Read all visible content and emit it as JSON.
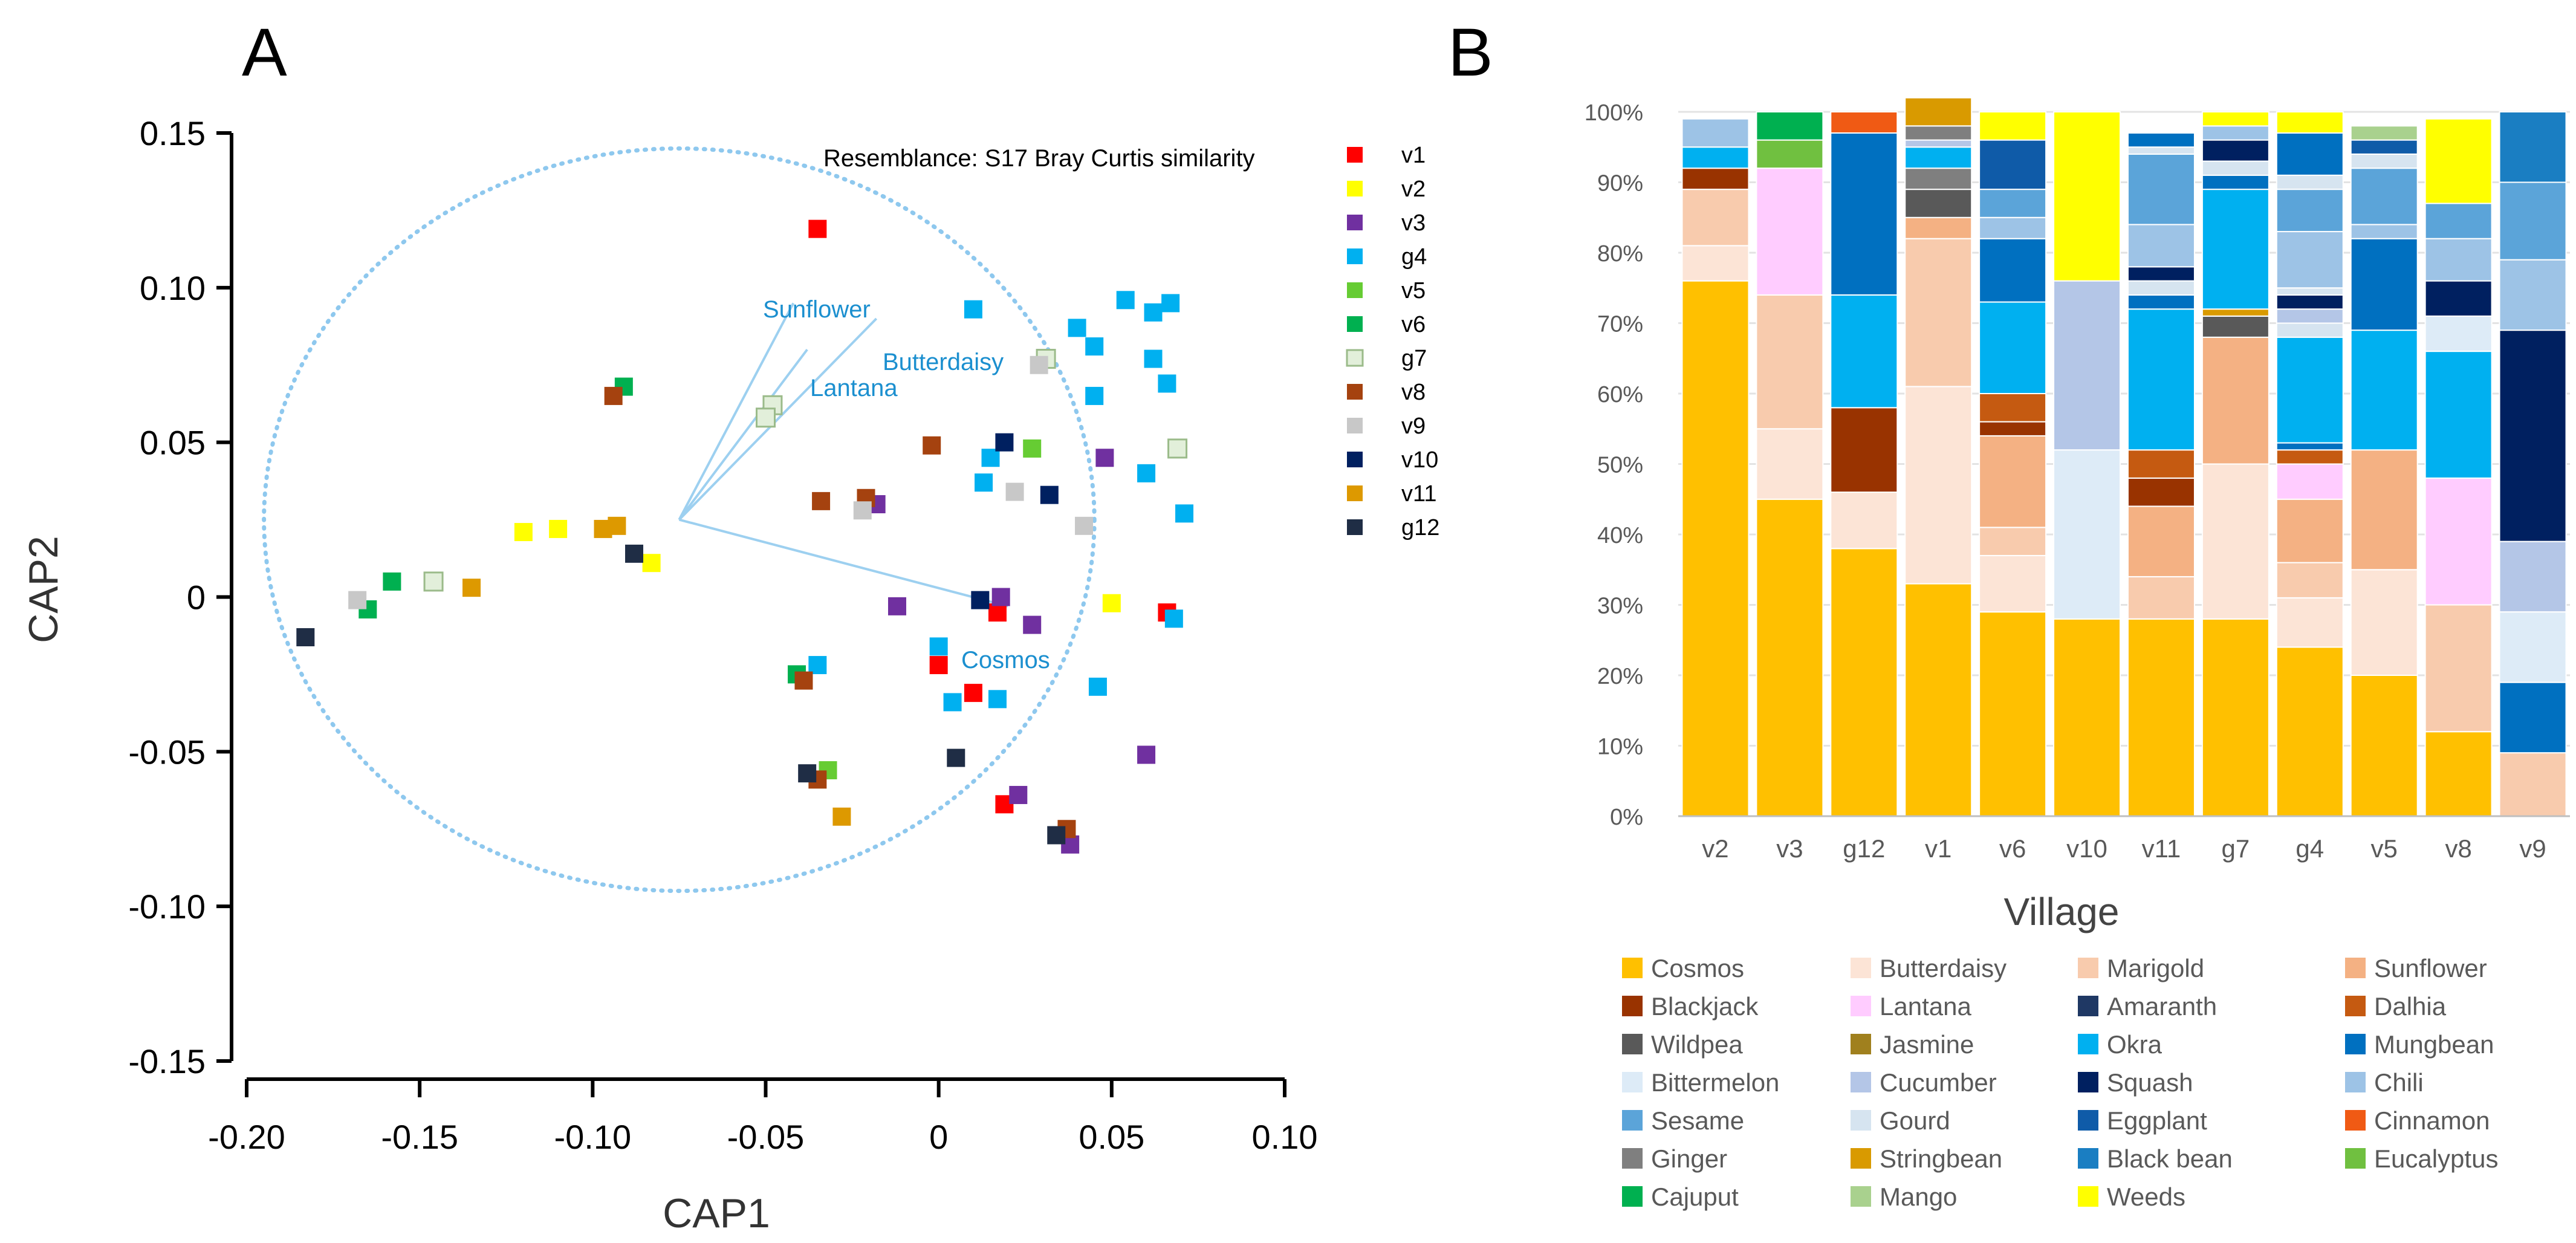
{
  "chart_data": [
    {
      "type": "scatter",
      "panel_label": "A",
      "title": "",
      "xlabel": "CAP1",
      "ylabel": "CAP2",
      "xlim": [
        -0.2,
        0.1
      ],
      "ylim": [
        -0.15,
        0.15
      ],
      "x_ticks": [
        -0.2,
        -0.15,
        -0.1,
        -0.05,
        0,
        0.05,
        0.1
      ],
      "x_tick_labels": [
        "-0.20",
        "-0.15",
        "-0.10",
        "-0.05",
        "0",
        "0.05",
        "0.10"
      ],
      "y_ticks": [
        0.15,
        0.1,
        0.05,
        0,
        -0.05,
        -0.1,
        -0.15
      ],
      "y_tick_labels": [
        "0.15",
        "0.10",
        "0.05",
        "0",
        "-0.05",
        "-0.10",
        "-0.15"
      ],
      "annotation": "Resemblance: S17 Bray Curtis similarity",
      "circle": {
        "center": [
          -0.075,
          0.025
        ],
        "radius": 0.12
      },
      "vectors": [
        {
          "label": "Sunflower",
          "end": [
            -0.042,
            0.095
          ]
        },
        {
          "label": "Butterdaisy",
          "end": [
            -0.018,
            0.09
          ]
        },
        {
          "label": "Lantana",
          "end": [
            -0.038,
            0.08
          ]
        },
        {
          "label": "Cosmos",
          "end": [
            0.02,
            -0.003
          ]
        }
      ],
      "series": [
        {
          "name": "v1",
          "color": "#ff0000",
          "points": [
            [
              -0.035,
              0.119
            ],
            [
              0.017,
              -0.005
            ],
            [
              0.066,
              -0.005
            ],
            [
              0.0,
              -0.022
            ],
            [
              0.01,
              -0.031
            ],
            [
              0.019,
              -0.067
            ]
          ]
        },
        {
          "name": "v2",
          "color": "#ffff00",
          "points": [
            [
              -0.12,
              0.021
            ],
            [
              -0.11,
              0.022
            ],
            [
              -0.083,
              0.011
            ],
            [
              0.05,
              -0.002
            ]
          ]
        },
        {
          "name": "v3",
          "color": "#7030a0",
          "points": [
            [
              -0.018,
              0.03
            ],
            [
              0.048,
              0.045
            ],
            [
              -0.012,
              -0.003
            ],
            [
              0.018,
              0.0
            ],
            [
              0.027,
              -0.009
            ],
            [
              0.06,
              -0.051
            ],
            [
              0.023,
              -0.064
            ],
            [
              0.038,
              -0.08
            ]
          ]
        },
        {
          "name": "g4",
          "color": "#00b0f0",
          "points": [
            [
              0.01,
              0.093
            ],
            [
              0.054,
              0.096
            ],
            [
              0.067,
              0.095
            ],
            [
              0.062,
              0.092
            ],
            [
              0.04,
              0.087
            ],
            [
              0.045,
              0.081
            ],
            [
              0.062,
              0.077
            ],
            [
              0.066,
              0.069
            ],
            [
              0.045,
              0.065
            ],
            [
              0.015,
              0.045
            ],
            [
              0.06,
              0.04
            ],
            [
              0.013,
              0.037
            ],
            [
              0.071,
              0.027
            ],
            [
              0.068,
              -0.007
            ],
            [
              0.0,
              -0.016
            ],
            [
              -0.035,
              -0.022
            ],
            [
              0.046,
              -0.029
            ],
            [
              0.017,
              -0.033
            ],
            [
              0.004,
              -0.034
            ]
          ]
        },
        {
          "name": "v5",
          "color": "#66cc33",
          "points": [
            [
              0.027,
              0.048
            ],
            [
              -0.032,
              -0.056
            ]
          ]
        },
        {
          "name": "v6",
          "color": "#00b050",
          "points": [
            [
              -0.091,
              0.068
            ],
            [
              -0.158,
              0.005
            ],
            [
              -0.165,
              -0.004
            ],
            [
              -0.041,
              -0.025
            ]
          ]
        },
        {
          "name": "g7",
          "color": "#e2efda",
          "points": [
            [
              -0.048,
              0.062
            ],
            [
              -0.05,
              0.058
            ],
            [
              0.031,
              0.077
            ],
            [
              0.069,
              0.048
            ],
            [
              -0.146,
              0.005
            ]
          ]
        },
        {
          "name": "v8",
          "color": "#a5420f",
          "points": [
            [
              -0.094,
              0.065
            ],
            [
              -0.002,
              0.049
            ],
            [
              -0.034,
              0.031
            ],
            [
              -0.021,
              0.032
            ],
            [
              -0.039,
              -0.027
            ],
            [
              -0.035,
              -0.059
            ],
            [
              0.037,
              -0.075
            ]
          ]
        },
        {
          "name": "v9",
          "color": "#c8c8c8",
          "points": [
            [
              0.029,
              0.075
            ],
            [
              0.022,
              0.034
            ],
            [
              -0.022,
              0.028
            ],
            [
              0.042,
              0.023
            ],
            [
              -0.168,
              -0.001
            ]
          ]
        },
        {
          "name": "v10",
          "color": "#002060",
          "points": [
            [
              0.019,
              0.05
            ],
            [
              0.032,
              0.033
            ],
            [
              0.012,
              -0.001
            ]
          ]
        },
        {
          "name": "v11",
          "color": "#dd9900",
          "points": [
            [
              -0.097,
              0.022
            ],
            [
              -0.093,
              0.023
            ],
            [
              -0.135,
              0.003
            ],
            [
              -0.028,
              -0.071
            ]
          ]
        },
        {
          "name": "g12",
          "color": "#1f2d45",
          "points": [
            [
              -0.088,
              0.014
            ],
            [
              -0.038,
              -0.057
            ],
            [
              0.005,
              -0.052
            ],
            [
              0.034,
              -0.077
            ],
            [
              -0.183,
              -0.013
            ]
          ]
        }
      ]
    },
    {
      "type": "bar",
      "stacked": true,
      "panel_label": "B",
      "title": "",
      "xlabel": "Village",
      "ylabel": "",
      "ylim": [
        0,
        100
      ],
      "y_ticks": [
        0,
        10,
        20,
        30,
        40,
        50,
        60,
        70,
        80,
        90,
        100
      ],
      "y_tick_labels": [
        "0%",
        "10%",
        "20%",
        "30%",
        "40%",
        "50%",
        "60%",
        "70%",
        "80%",
        "90%",
        "100%"
      ],
      "categories": [
        "v2",
        "v3",
        "g12",
        "v1",
        "v6",
        "v10",
        "v11",
        "g7",
        "g4",
        "v5",
        "v8",
        "v9"
      ],
      "species": [
        {
          "name": "Cosmos",
          "color": "#ffc000"
        },
        {
          "name": "Butterdaisy",
          "color": "#fce4d6"
        },
        {
          "name": "Marigold",
          "color": "#f8cbad"
        },
        {
          "name": "Sunflower",
          "color": "#f4b183"
        },
        {
          "name": "Blackjack",
          "color": "#993300"
        },
        {
          "name": "Lantana",
          "color": "#ffccff"
        },
        {
          "name": "Amaranth",
          "color": "#1f3864"
        },
        {
          "name": "Dalhia",
          "color": "#c55a11"
        },
        {
          "name": "Wildpea",
          "color": "#595959"
        },
        {
          "name": "Jasmine",
          "color": "#a0801e"
        },
        {
          "name": "Okra",
          "color": "#00b0f0"
        },
        {
          "name": "Mungbean",
          "color": "#0070c0"
        },
        {
          "name": "Bittermelon",
          "color": "#ddebf7"
        },
        {
          "name": "Cucumber",
          "color": "#b4c6e7"
        },
        {
          "name": "Squash",
          "color": "#002060"
        },
        {
          "name": "Chili",
          "color": "#9dc3e6"
        },
        {
          "name": "Sesame",
          "color": "#5ba4d9"
        },
        {
          "name": "Gourd",
          "color": "#d6e4f0"
        },
        {
          "name": "Eggplant",
          "color": "#0f5ba8"
        },
        {
          "name": "Cinnamon",
          "color": "#f05a14"
        },
        {
          "name": "Ginger",
          "color": "#7f7f7f"
        },
        {
          "name": "Stringbean",
          "color": "#d99a00"
        },
        {
          "name": "Black bean",
          "color": "#1a7ec2"
        },
        {
          "name": "Eucalyptus",
          "color": "#70c040"
        },
        {
          "name": "Cajuput",
          "color": "#00b050"
        },
        {
          "name": "Mango",
          "color": "#a9d18e"
        },
        {
          "name": "Weeds",
          "color": "#ffff00"
        }
      ],
      "stacks": [
        [
          {
            "s": "Cosmos",
            "v": 76
          },
          {
            "s": "Butterdaisy",
            "v": 5
          },
          {
            "s": "Marigold",
            "v": 8
          },
          {
            "s": "Blackjack",
            "v": 3
          },
          {
            "s": "Okra",
            "v": 3
          },
          {
            "s": "Chili",
            "v": 4
          }
        ],
        [
          {
            "s": "Cosmos",
            "v": 45
          },
          {
            "s": "Butterdaisy",
            "v": 10
          },
          {
            "s": "Marigold",
            "v": 19
          },
          {
            "s": "Lantana",
            "v": 18
          },
          {
            "s": "Eucalyptus",
            "v": 4
          },
          {
            "s": "Cajuput",
            "v": 4
          }
        ],
        [
          {
            "s": "Cosmos",
            "v": 38
          },
          {
            "s": "Butterdaisy",
            "v": 8
          },
          {
            "s": "Blackjack",
            "v": 12
          },
          {
            "s": "Okra",
            "v": 16
          },
          {
            "s": "Mungbean",
            "v": 23
          },
          {
            "s": "Cinnamon",
            "v": 3
          }
        ],
        [
          {
            "s": "Cosmos",
            "v": 33
          },
          {
            "s": "Butterdaisy",
            "v": 28
          },
          {
            "s": "Marigold",
            "v": 21
          },
          {
            "s": "Sunflower",
            "v": 3
          },
          {
            "s": "Wildpea",
            "v": 4
          },
          {
            "s": "Ginger",
            "v": 3
          },
          {
            "s": "Okra",
            "v": 3
          },
          {
            "s": "Cucumber",
            "v": 1
          },
          {
            "s": "Ginger",
            "v": 2
          },
          {
            "s": "Stringbean",
            "v": 4
          }
        ],
        [
          {
            "s": "Cosmos",
            "v": 29
          },
          {
            "s": "Butterdaisy",
            "v": 8
          },
          {
            "s": "Marigold",
            "v": 4
          },
          {
            "s": "Sunflower",
            "v": 13
          },
          {
            "s": "Blackjack",
            "v": 2
          },
          {
            "s": "Dalhia",
            "v": 4
          },
          {
            "s": "Okra",
            "v": 13
          },
          {
            "s": "Mungbean",
            "v": 9
          },
          {
            "s": "Chili",
            "v": 3
          },
          {
            "s": "Sesame",
            "v": 4
          },
          {
            "s": "Eggplant",
            "v": 7
          },
          {
            "s": "Weeds",
            "v": 4
          }
        ],
        [
          {
            "s": "Cosmos",
            "v": 28
          },
          {
            "s": "Bittermelon",
            "v": 24
          },
          {
            "s": "Cucumber",
            "v": 24
          },
          {
            "s": "Weeds",
            "v": 24
          }
        ],
        [
          {
            "s": "Cosmos",
            "v": 28
          },
          {
            "s": "Marigold",
            "v": 6
          },
          {
            "s": "Sunflower",
            "v": 10
          },
          {
            "s": "Blackjack",
            "v": 4
          },
          {
            "s": "Dalhia",
            "v": 4
          },
          {
            "s": "Okra",
            "v": 20
          },
          {
            "s": "Mungbean",
            "v": 2
          },
          {
            "s": "Gourd",
            "v": 2
          },
          {
            "s": "Squash",
            "v": 2
          },
          {
            "s": "Chili",
            "v": 6
          },
          {
            "s": "Sesame",
            "v": 10
          },
          {
            "s": "Gourd",
            "v": 1
          },
          {
            "s": "Mungbean",
            "v": 2
          }
        ],
        [
          {
            "s": "Cosmos",
            "v": 28
          },
          {
            "s": "Butterdaisy",
            "v": 22
          },
          {
            "s": "Sunflower",
            "v": 18
          },
          {
            "s": "Wildpea",
            "v": 3
          },
          {
            "s": "Stringbean",
            "v": 1
          },
          {
            "s": "Okra",
            "v": 17
          },
          {
            "s": "Mungbean",
            "v": 2
          },
          {
            "s": "Gourd",
            "v": 2
          },
          {
            "s": "Squash",
            "v": 3
          },
          {
            "s": "Chili",
            "v": 2
          },
          {
            "s": "Weeds",
            "v": 2
          }
        ],
        [
          {
            "s": "Cosmos",
            "v": 24
          },
          {
            "s": "Butterdaisy",
            "v": 7
          },
          {
            "s": "Marigold",
            "v": 5
          },
          {
            "s": "Sunflower",
            "v": 9
          },
          {
            "s": "Lantana",
            "v": 5
          },
          {
            "s": "Dalhia",
            "v": 2
          },
          {
            "s": "Mungbean",
            "v": 1
          },
          {
            "s": "Okra",
            "v": 15
          },
          {
            "s": "Gourd",
            "v": 2
          },
          {
            "s": "Cucumber",
            "v": 2
          },
          {
            "s": "Squash",
            "v": 2
          },
          {
            "s": "Gourd",
            "v": 1
          },
          {
            "s": "Chili",
            "v": 8
          },
          {
            "s": "Sesame",
            "v": 6
          },
          {
            "s": "Gourd",
            "v": 2
          },
          {
            "s": "Mungbean",
            "v": 6
          },
          {
            "s": "Weeds",
            "v": 3
          }
        ],
        [
          {
            "s": "Cosmos",
            "v": 20
          },
          {
            "s": "Butterdaisy",
            "v": 15
          },
          {
            "s": "Sunflower",
            "v": 17
          },
          {
            "s": "Okra",
            "v": 17
          },
          {
            "s": "Mungbean",
            "v": 13
          },
          {
            "s": "Chili",
            "v": 2
          },
          {
            "s": "Sesame",
            "v": 8
          },
          {
            "s": "Gourd",
            "v": 2
          },
          {
            "s": "Eggplant",
            "v": 2
          },
          {
            "s": "Mango",
            "v": 2
          }
        ],
        [
          {
            "s": "Cosmos",
            "v": 12
          },
          {
            "s": "Marigold",
            "v": 18
          },
          {
            "s": "Lantana",
            "v": 18
          },
          {
            "s": "Okra",
            "v": 18
          },
          {
            "s": "Bittermelon",
            "v": 5
          },
          {
            "s": "Squash",
            "v": 5
          },
          {
            "s": "Chili",
            "v": 6
          },
          {
            "s": "Sesame",
            "v": 5
          },
          {
            "s": "Weeds",
            "v": 12
          }
        ],
        [
          {
            "s": "Marigold",
            "v": 9
          },
          {
            "s": "Mungbean",
            "v": 10
          },
          {
            "s": "Bittermelon",
            "v": 10
          },
          {
            "s": "Cucumber",
            "v": 10
          },
          {
            "s": "Squash",
            "v": 30
          },
          {
            "s": "Chili",
            "v": 10
          },
          {
            "s": "Sesame",
            "v": 11
          },
          {
            "s": "Black bean",
            "v": 10
          }
        ]
      ]
    }
  ]
}
